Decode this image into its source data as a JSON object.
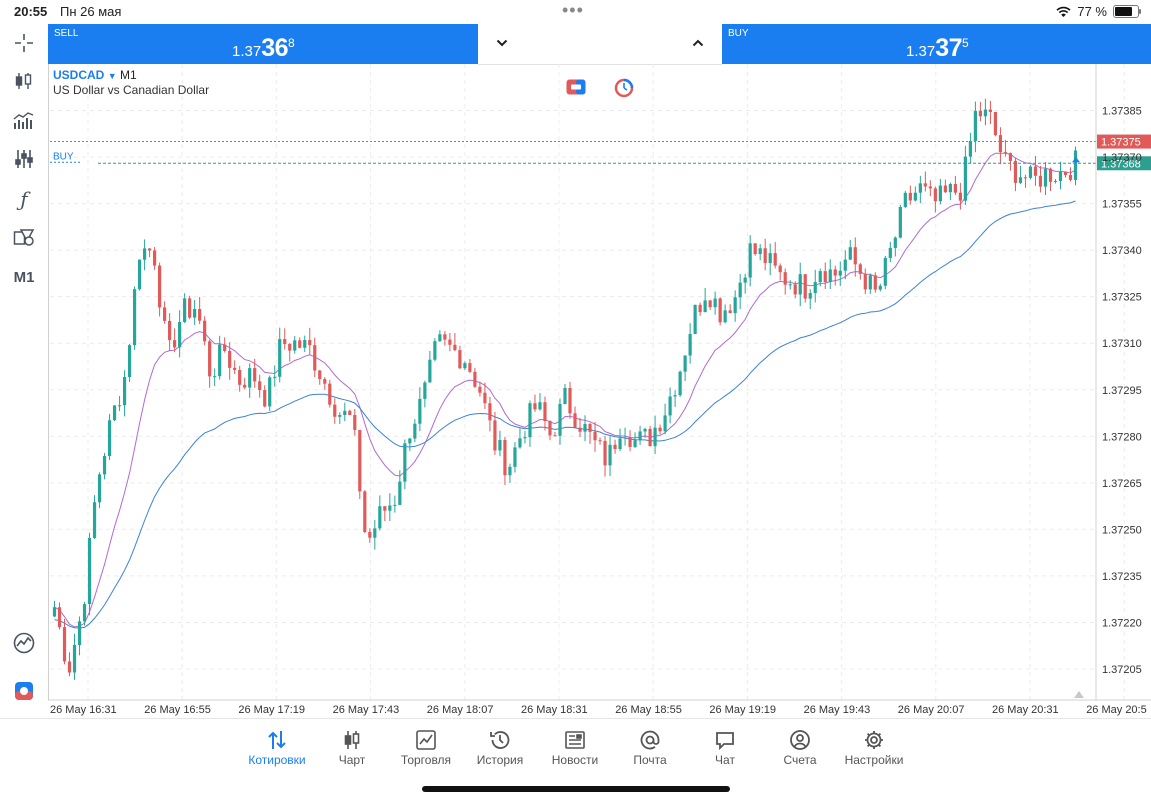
{
  "status_bar": {
    "time": "20:55",
    "date": "Пн 26 мая",
    "battery": "77 %"
  },
  "trade": {
    "sell": {
      "label": "SELL",
      "price_small": "1.37",
      "price_big": "36",
      "price_sup": "8"
    },
    "buy": {
      "label": "BUY",
      "price_small": "1.37",
      "price_big": "37",
      "price_sup": "5"
    }
  },
  "symbol": {
    "name": "USDCAD",
    "timeframe": "M1",
    "description": "US Dollar vs Canadian Dollar"
  },
  "toolbar": {
    "timeframe_label": "M1"
  },
  "chart_data": {
    "type": "candlestick",
    "y_ticks": [
      "1.37385",
      "1.37370",
      "1.37355",
      "1.37340",
      "1.37325",
      "1.37310",
      "1.37295",
      "1.37280",
      "1.37265",
      "1.37250",
      "1.37235",
      "1.37220",
      "1.37205"
    ],
    "y_range": [
      1.37195,
      1.374
    ],
    "x_ticks": [
      "26 May 16:31",
      "26 May 16:55",
      "26 May 17:19",
      "26 May 17:43",
      "26 May 18:07",
      "26 May 18:31",
      "26 May 18:55",
      "26 May 19:19",
      "26 May 19:43",
      "26 May 20:07",
      "26 May 20:31",
      "26 May 20:5"
    ],
    "ask_line": {
      "value": 1.37375,
      "label": "1.37375",
      "color": "#e05a5a"
    },
    "bid_line": {
      "value": 1.37368,
      "label": "1.37368",
      "color": "#2e9e8e"
    },
    "buy_line_label": "BUY",
    "up_color": "#26a69a",
    "down_color": "#e05a5a",
    "ma_fast_color": "#b06ad6",
    "ma_slow_color": "#3b82d6",
    "path": [
      1.37225,
      1.37205,
      1.37225,
      1.37265,
      1.37285,
      1.373,
      1.3734,
      1.3734,
      1.37305,
      1.3732,
      1.37322,
      1.373,
      1.37308,
      1.37298,
      1.373,
      1.37292,
      1.3731,
      1.3731,
      1.37308,
      1.37298,
      1.37288,
      1.37285,
      1.37245,
      1.37255,
      1.3726,
      1.37282,
      1.37292,
      1.3731,
      1.37308,
      1.37305,
      1.37295,
      1.37278,
      1.3727,
      1.37282,
      1.3729,
      1.3728,
      1.37292,
      1.37285,
      1.37278,
      1.37272,
      1.37285,
      1.37278,
      1.3728,
      1.37288,
      1.373,
      1.37318,
      1.37328,
      1.3732,
      1.37325,
      1.3734,
      1.37338,
      1.37332,
      1.3733,
      1.37328,
      1.37335,
      1.37332,
      1.37338,
      1.37332,
      1.37325,
      1.3734,
      1.37355,
      1.3736,
      1.37355,
      1.37358,
      1.3736,
      1.37385,
      1.37382,
      1.37368,
      1.37365,
      1.37362,
      1.37365,
      1.37365,
      1.37368
    ]
  },
  "nav": [
    {
      "label": "Котировки",
      "icon": "quotes-arrows-icon",
      "active": true
    },
    {
      "label": "Чарт",
      "icon": "candles-icon",
      "active": false
    },
    {
      "label": "Торговля",
      "icon": "trade-chart-icon",
      "active": false
    },
    {
      "label": "История",
      "icon": "history-clock-icon",
      "active": false
    },
    {
      "label": "Новости",
      "icon": "news-icon",
      "active": false
    },
    {
      "label": "Почта",
      "icon": "mail-at-icon",
      "active": false
    },
    {
      "label": "Чат",
      "icon": "chat-bubble-icon",
      "active": false
    },
    {
      "label": "Счета",
      "icon": "accounts-user-icon",
      "active": false
    },
    {
      "label": "Настройки",
      "icon": "settings-gear-icon",
      "active": false
    }
  ]
}
